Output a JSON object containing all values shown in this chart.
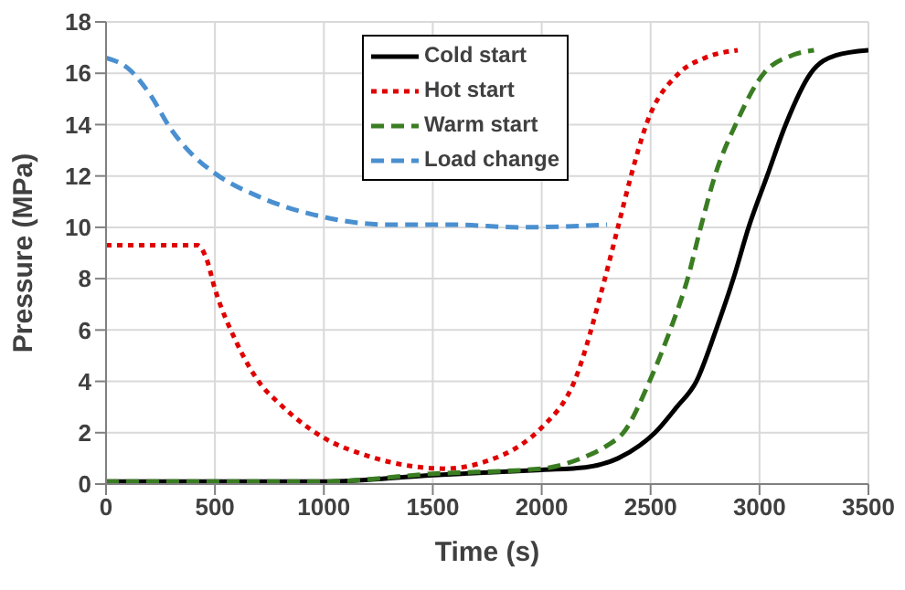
{
  "chart_data": {
    "type": "line",
    "xlabel": "Time (s)",
    "ylabel": "Pressure (MPa)",
    "xlim": [
      0,
      3500
    ],
    "xticks": [
      0,
      500,
      1000,
      1500,
      2000,
      2500,
      3000,
      3500
    ],
    "ylim": [
      0,
      18
    ],
    "yticks": [
      0,
      2,
      4,
      6,
      8,
      10,
      12,
      14,
      16,
      18
    ],
    "grid": true,
    "legend": "top right",
    "marker": "none",
    "series": [
      {
        "name": "Cold start",
        "color": "#000000",
        "line_style": "solid",
        "x": [
          0,
          1000,
          1500,
          2000,
          2200,
          2350,
          2450,
          2520,
          2620,
          2710,
          2800,
          2880,
          2950,
          3035,
          3120,
          3235,
          3350,
          3500
        ],
        "values": [
          0.1,
          0.1,
          0.35,
          0.55,
          0.65,
          1.0,
          1.5,
          2,
          3,
          4,
          6,
          8,
          10,
          12,
          14,
          16,
          16.7,
          16.9
        ]
      },
      {
        "name": "Hot start",
        "color": "#e00000",
        "line_style": "dotted",
        "x": [
          0,
          420,
          460,
          500,
          600,
          700,
          800,
          1000,
          1200,
          1400,
          1550,
          1750,
          1900,
          2000,
          2150,
          2290,
          2350,
          2410,
          2480,
          2630,
          2750,
          2900
        ],
        "values": [
          9.3,
          9.3,
          8.8,
          7.6,
          5.5,
          4.0,
          3.1,
          1.8,
          1.1,
          0.7,
          0.6,
          0.9,
          1.5,
          2.2,
          4,
          8,
          10,
          12,
          14,
          16,
          16.6,
          16.9
        ]
      },
      {
        "name": "Warm start",
        "color": "#3a7d22",
        "line_style": "dashed",
        "x": [
          0,
          1000,
          1500,
          2000,
          2180,
          2300,
          2375,
          2495,
          2590,
          2670,
          2730,
          2795,
          2890,
          3020,
          3150,
          3250
        ],
        "values": [
          0.1,
          0.1,
          0.4,
          0.6,
          1,
          1.5,
          2,
          4,
          6,
          8,
          10,
          12,
          14,
          16,
          16.7,
          16.9
        ]
      },
      {
        "name": "Load change",
        "color": "#4a90d0",
        "line_style": "dashed",
        "x": [
          0,
          100,
          200,
          300,
          400,
          500,
          700,
          1000,
          1300,
          1600,
          1900,
          2300
        ],
        "values": [
          16.6,
          16.2,
          15.2,
          13.8,
          12.8,
          12.1,
          11.2,
          10.4,
          10.1,
          10.1,
          10.0,
          10.1
        ]
      }
    ]
  }
}
